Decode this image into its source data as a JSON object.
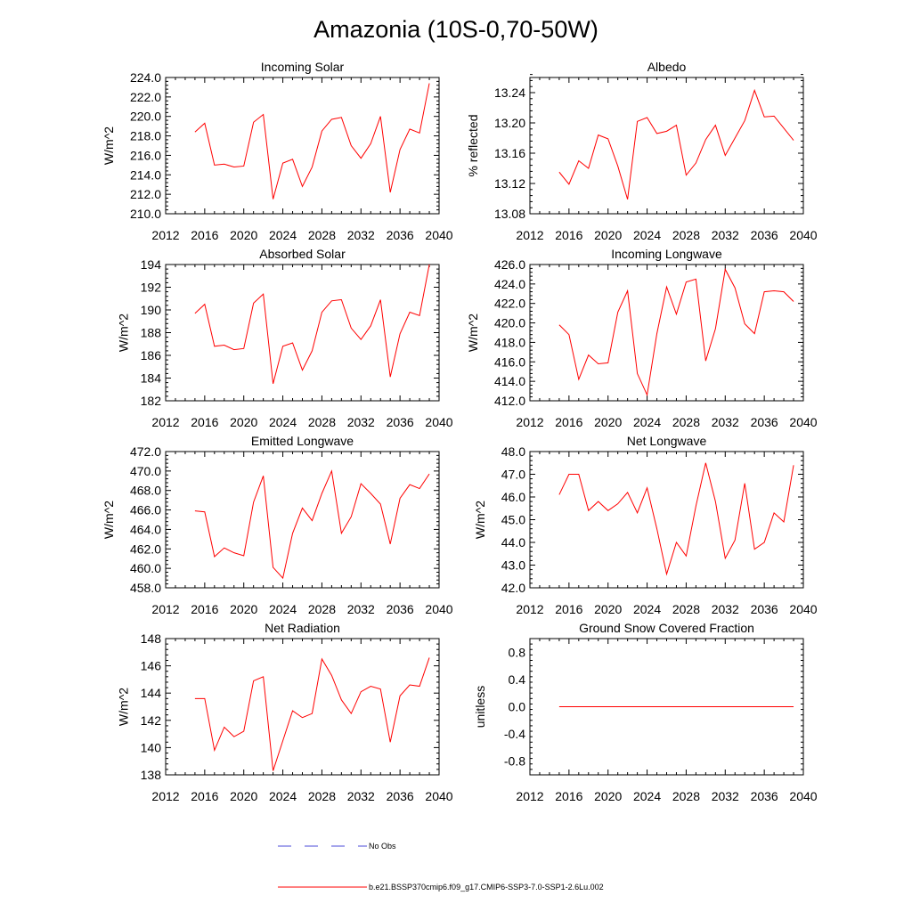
{
  "title": "Amazonia (10S-0,70-50W)",
  "colors": {
    "series": "#ff0000",
    "obs": "#4b4bd8",
    "axis": "#000000"
  },
  "legend": {
    "obs_label": "No Obs",
    "model_label": "b.e21.BSSP370cmip6.f09_g17.CMIP6-SSP3-7.0-SSP1-2.6Lu.002"
  },
  "chart_data": [
    {
      "type": "line",
      "title": "Incoming Solar",
      "xlabel": "",
      "ylabel": "W/m^2",
      "xlim": [
        2012,
        2040
      ],
      "xticks": [
        "2012",
        "2016",
        "2020",
        "2024",
        "2028",
        "2032",
        "2036",
        "2040"
      ],
      "ylim": [
        210,
        224
      ],
      "yticks": [
        "210.0",
        "212.0",
        "214.0",
        "216.0",
        "218.0",
        "220.0",
        "222.0",
        "224.0"
      ],
      "x": [
        2015,
        2016,
        2017,
        2018,
        2019,
        2020,
        2021,
        2022,
        2023,
        2024,
        2025,
        2026,
        2027,
        2028,
        2029,
        2030,
        2031,
        2032,
        2033,
        2034,
        2035,
        2036,
        2037,
        2038,
        2039
      ],
      "values": [
        218.4,
        219.3,
        215.0,
        215.1,
        214.8,
        214.9,
        219.4,
        220.2,
        211.5,
        215.2,
        215.6,
        212.8,
        214.8,
        218.5,
        219.7,
        219.9,
        217.0,
        215.7,
        217.2,
        220.0,
        212.2,
        216.6,
        218.7,
        218.3,
        223.4
      ]
    },
    {
      "type": "line",
      "title": "Albedo",
      "xlabel": "",
      "ylabel": "% reflected",
      "xlim": [
        2012,
        2040
      ],
      "xticks": [
        "2012",
        "2016",
        "2020",
        "2024",
        "2028",
        "2032",
        "2036",
        "2040"
      ],
      "ylim": [
        13.08,
        13.26
      ],
      "yticks": [
        "13.08",
        "13.12",
        "13.16",
        "13.20",
        "13.24"
      ],
      "x": [
        2015,
        2016,
        2017,
        2018,
        2019,
        2020,
        2021,
        2022,
        2023,
        2024,
        2025,
        2026,
        2027,
        2028,
        2029,
        2030,
        2031,
        2032,
        2033,
        2034,
        2035,
        2036,
        2037,
        2038,
        2039
      ],
      "values": [
        13.135,
        13.119,
        13.15,
        13.14,
        13.184,
        13.179,
        13.143,
        13.099,
        13.202,
        13.207,
        13.186,
        13.189,
        13.197,
        13.131,
        13.147,
        13.178,
        13.197,
        13.157,
        13.18,
        13.203,
        13.243,
        13.208,
        13.209,
        13.193,
        13.177
      ]
    },
    {
      "type": "line",
      "title": "Absorbed Solar",
      "xlabel": "",
      "ylabel": "W/m^2",
      "xlim": [
        2012,
        2040
      ],
      "xticks": [
        "2012",
        "2016",
        "2020",
        "2024",
        "2028",
        "2032",
        "2036",
        "2040"
      ],
      "ylim": [
        182,
        194
      ],
      "yticks": [
        "182",
        "184",
        "186",
        "188",
        "190",
        "192",
        "194"
      ],
      "x": [
        2015,
        2016,
        2017,
        2018,
        2019,
        2020,
        2021,
        2022,
        2023,
        2024,
        2025,
        2026,
        2027,
        2028,
        2029,
        2030,
        2031,
        2032,
        2033,
        2034,
        2035,
        2036,
        2037,
        2038,
        2039
      ],
      "values": [
        189.7,
        190.5,
        186.8,
        186.9,
        186.5,
        186.6,
        190.6,
        191.4,
        183.5,
        186.8,
        187.1,
        184.7,
        186.4,
        189.8,
        190.8,
        190.9,
        188.4,
        187.4,
        188.6,
        190.9,
        184.1,
        187.9,
        189.8,
        189.5,
        194.0
      ]
    },
    {
      "type": "line",
      "title": "Incoming Longwave",
      "xlabel": "",
      "ylabel": "W/m^2",
      "xlim": [
        2012,
        2040
      ],
      "xticks": [
        "2012",
        "2016",
        "2020",
        "2024",
        "2028",
        "2032",
        "2036",
        "2040"
      ],
      "ylim": [
        412,
        426
      ],
      "yticks": [
        "412.0",
        "414.0",
        "416.0",
        "418.0",
        "420.0",
        "422.0",
        "424.0",
        "426.0"
      ],
      "x": [
        2015,
        2016,
        2017,
        2018,
        2019,
        2020,
        2021,
        2022,
        2023,
        2024,
        2025,
        2026,
        2027,
        2028,
        2029,
        2030,
        2031,
        2032,
        2033,
        2034,
        2035,
        2036,
        2037,
        2038,
        2039
      ],
      "values": [
        419.8,
        418.8,
        414.2,
        416.7,
        415.8,
        415.9,
        421.1,
        423.3,
        414.8,
        412.6,
        418.9,
        423.7,
        420.9,
        424.2,
        424.5,
        416.1,
        419.4,
        425.5,
        423.6,
        419.9,
        418.9,
        423.2,
        423.3,
        423.2,
        422.2
      ]
    },
    {
      "type": "line",
      "title": "Emitted Longwave",
      "xlabel": "",
      "ylabel": "W/m^2",
      "xlim": [
        2012,
        2040
      ],
      "xticks": [
        "2012",
        "2016",
        "2020",
        "2024",
        "2028",
        "2032",
        "2036",
        "2040"
      ],
      "ylim": [
        458,
        472
      ],
      "yticks": [
        "458.0",
        "460.0",
        "462.0",
        "464.0",
        "466.0",
        "468.0",
        "470.0",
        "472.0"
      ],
      "x": [
        2015,
        2016,
        2017,
        2018,
        2019,
        2020,
        2021,
        2022,
        2023,
        2024,
        2025,
        2026,
        2027,
        2028,
        2029,
        2030,
        2031,
        2032,
        2033,
        2034,
        2035,
        2036,
        2037,
        2038,
        2039
      ],
      "values": [
        465.9,
        465.8,
        461.2,
        462.1,
        461.6,
        461.3,
        466.8,
        469.5,
        460.1,
        459.0,
        463.6,
        466.2,
        464.9,
        467.7,
        470.0,
        463.6,
        465.3,
        468.7,
        467.7,
        466.6,
        462.5,
        467.2,
        468.6,
        468.2,
        469.7
      ]
    },
    {
      "type": "line",
      "title": "Net Longwave",
      "xlabel": "",
      "ylabel": "W/m^2",
      "xlim": [
        2012,
        2040
      ],
      "xticks": [
        "2012",
        "2016",
        "2020",
        "2024",
        "2028",
        "2032",
        "2036",
        "2040"
      ],
      "ylim": [
        42,
        48
      ],
      "yticks": [
        "42.0",
        "43.0",
        "44.0",
        "45.0",
        "46.0",
        "47.0",
        "48.0"
      ],
      "x": [
        2015,
        2016,
        2017,
        2018,
        2019,
        2020,
        2021,
        2022,
        2023,
        2024,
        2025,
        2026,
        2027,
        2028,
        2029,
        2030,
        2031,
        2032,
        2033,
        2034,
        2035,
        2036,
        2037,
        2038,
        2039
      ],
      "values": [
        46.1,
        47.0,
        47.0,
        45.4,
        45.8,
        45.4,
        45.7,
        46.2,
        45.3,
        46.4,
        44.6,
        42.6,
        44.0,
        43.4,
        45.6,
        47.5,
        45.8,
        43.3,
        44.1,
        46.6,
        43.7,
        44.0,
        45.3,
        44.9,
        47.4
      ]
    },
    {
      "type": "line",
      "title": "Net Radiation",
      "xlabel": "",
      "ylabel": "W/m^2",
      "xlim": [
        2012,
        2040
      ],
      "xticks": [
        "2012",
        "2016",
        "2020",
        "2024",
        "2028",
        "2032",
        "2036",
        "2040"
      ],
      "ylim": [
        138,
        148
      ],
      "yticks": [
        "138",
        "140",
        "142",
        "144",
        "146",
        "148"
      ],
      "x": [
        2015,
        2016,
        2017,
        2018,
        2019,
        2020,
        2021,
        2022,
        2023,
        2024,
        2025,
        2026,
        2027,
        2028,
        2029,
        2030,
        2031,
        2032,
        2033,
        2034,
        2035,
        2036,
        2037,
        2038,
        2039
      ],
      "values": [
        143.6,
        143.6,
        139.8,
        141.5,
        140.8,
        141.2,
        144.9,
        145.2,
        138.3,
        140.5,
        142.7,
        142.2,
        142.5,
        146.5,
        145.3,
        143.5,
        142.5,
        144.1,
        144.5,
        144.3,
        140.4,
        143.8,
        144.6,
        144.5,
        146.6
      ]
    },
    {
      "type": "line",
      "title": "Ground Snow Covered Fraction",
      "xlabel": "",
      "ylabel": "unitless",
      "xlim": [
        2012,
        2040
      ],
      "xticks": [
        "2012",
        "2016",
        "2020",
        "2024",
        "2028",
        "2032",
        "2036",
        "2040"
      ],
      "ylim": [
        -1.0,
        1.0
      ],
      "yticks": [
        "-0.8",
        "-0.4",
        "0.0",
        "0.4",
        "0.8"
      ],
      "x": [
        2015,
        2016,
        2017,
        2018,
        2019,
        2020,
        2021,
        2022,
        2023,
        2024,
        2025,
        2026,
        2027,
        2028,
        2029,
        2030,
        2031,
        2032,
        2033,
        2034,
        2035,
        2036,
        2037,
        2038,
        2039
      ],
      "values": [
        0,
        0,
        0,
        0,
        0,
        0,
        0,
        0,
        0,
        0,
        0,
        0,
        0,
        0,
        0,
        0,
        0,
        0,
        0,
        0,
        0,
        0,
        0,
        0,
        0
      ]
    }
  ]
}
